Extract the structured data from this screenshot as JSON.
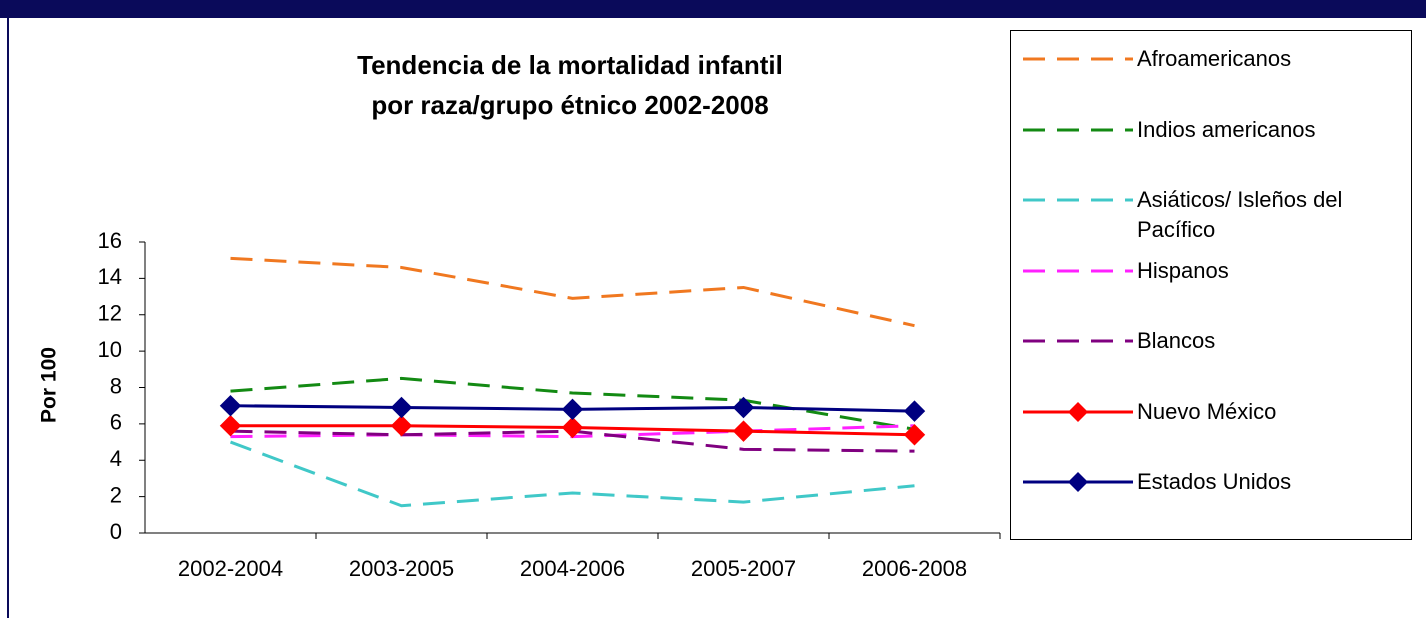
{
  "chart_data": {
    "type": "line",
    "title": [
      "Tendencia de la mortalidad infantil",
      "por raza/grupo étnico 2002-2008"
    ],
    "y_label": "Por 100",
    "categories": [
      "2002-2004",
      "2003-2005",
      "2004-2006",
      "2005-2007",
      "2006-2008"
    ],
    "ylim": [
      0,
      16
    ],
    "yticks": [
      0,
      2,
      4,
      6,
      8,
      10,
      12,
      14,
      16
    ],
    "legend": "right",
    "series": [
      {
        "name": "Afroamericanos",
        "color": "#f07820",
        "dashed": true,
        "values": [
          15.1,
          14.6,
          12.9,
          13.5,
          11.4
        ]
      },
      {
        "name": "Indios americanos",
        "color": "#138a13",
        "dashed": true,
        "values": [
          7.8,
          8.5,
          7.7,
          7.3,
          5.7
        ]
      },
      {
        "name": "Asiáticos/ Isleños del Pacífico",
        "color": "#40c8c8",
        "dashed": true,
        "values": [
          5.0,
          1.5,
          2.2,
          1.7,
          2.6
        ]
      },
      {
        "name": "Hispanos",
        "color": "#ff20ff",
        "dashed": true,
        "values": [
          5.3,
          5.4,
          5.3,
          5.6,
          5.9
        ]
      },
      {
        "name": "Blancos",
        "color": "#800080",
        "dashed": true,
        "values": [
          5.6,
          5.4,
          5.6,
          4.6,
          4.5
        ]
      },
      {
        "name": "Nuevo México",
        "color": "#ff0000",
        "marker": "diamond",
        "values": [
          5.9,
          5.9,
          5.8,
          5.6,
          5.4
        ]
      },
      {
        "name": "Estados Unidos",
        "color": "#000080",
        "marker": "diamond",
        "values": [
          7.0,
          6.9,
          6.8,
          6.9,
          6.7
        ]
      }
    ]
  }
}
